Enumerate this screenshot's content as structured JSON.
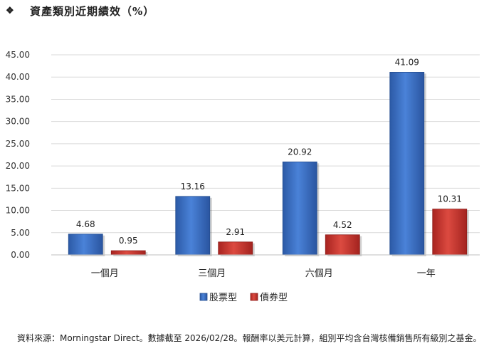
{
  "title": {
    "bullet": "❖",
    "text": "資產類別近期績效（%）"
  },
  "chart_data": {
    "type": "bar",
    "categories": [
      "一個月",
      "三個月",
      "六個月",
      "一年"
    ],
    "series": [
      {
        "name": "股票型",
        "values": [
          4.68,
          13.16,
          20.92,
          41.09
        ],
        "color": "#3a6fc4"
      },
      {
        "name": "債券型",
        "values": [
          0.95,
          2.91,
          4.52,
          10.31
        ],
        "color": "#c8322d"
      }
    ],
    "y_ticks": [
      "0.00",
      "5.00",
      "10.00",
      "15.00",
      "20.00",
      "25.00",
      "30.00",
      "35.00",
      "40.00",
      "45.00"
    ],
    "ylim": [
      0,
      45
    ],
    "grid": true,
    "legend_position": "bottom",
    "data_labels": true
  },
  "source_note": "資料來源：Morningstar Direct。數據截至 2026/02/28。報酬率以美元計算，組別平均含台灣核備銷售所有級別之基金。"
}
